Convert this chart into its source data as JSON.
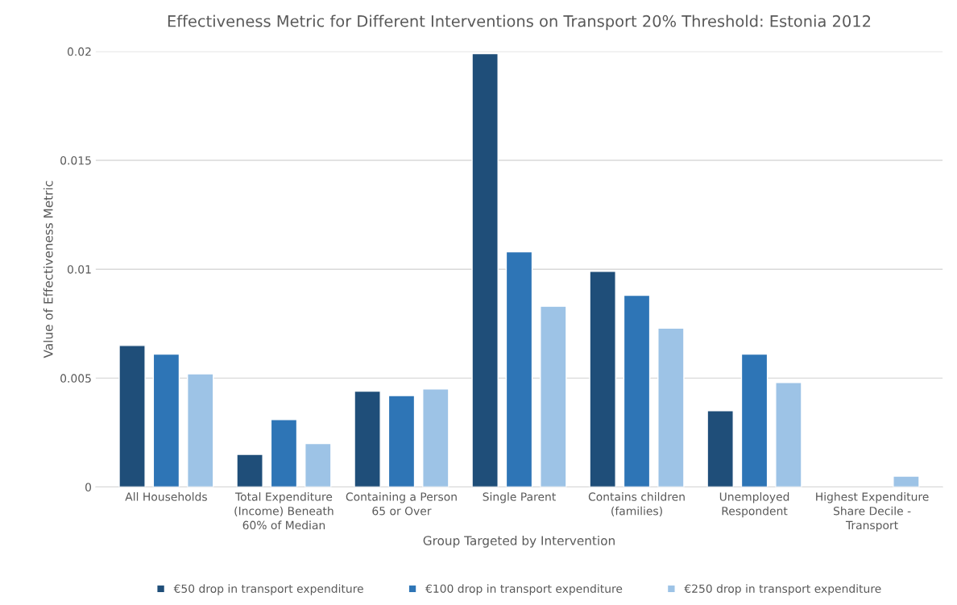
{
  "chart_data": {
    "type": "bar",
    "title": "Effectiveness Metric for Different Interventions on Transport 20% Threshold: Estonia 2012",
    "xlabel": "Group Targeted by Intervention",
    "ylabel": "Value of Effectiveness Metric",
    "categories": [
      "All Households",
      "Total Expenditure (Income) Beneath 60% of Median",
      "Containing a Person 65 or Over",
      "Single Parent",
      "Contains children (families)",
      "Unemployed Respondent",
      "Highest Expenditure Share Decile - Transport"
    ],
    "series": [
      {
        "name": "€50 drop in transport expenditure",
        "color": "#1f4e79",
        "values": [
          0.0065,
          0.0015,
          0.0044,
          0.0199,
          0.0099,
          0.0035,
          null
        ]
      },
      {
        "name": "€100 drop in transport expenditure",
        "color": "#2e75b6",
        "values": [
          0.0061,
          0.0031,
          0.0042,
          0.0108,
          0.0088,
          0.0061,
          null
        ]
      },
      {
        "name": "€250 drop in transport expenditure",
        "color": "#9dc3e6",
        "values": [
          0.0052,
          0.002,
          0.0045,
          0.0083,
          0.0073,
          0.0048,
          0.0005
        ]
      }
    ],
    "ylim": [
      0,
      0.02
    ],
    "yticks": [
      0,
      0.005,
      0.01,
      0.015,
      0.02
    ],
    "grid": "y",
    "legend": "bottom"
  }
}
